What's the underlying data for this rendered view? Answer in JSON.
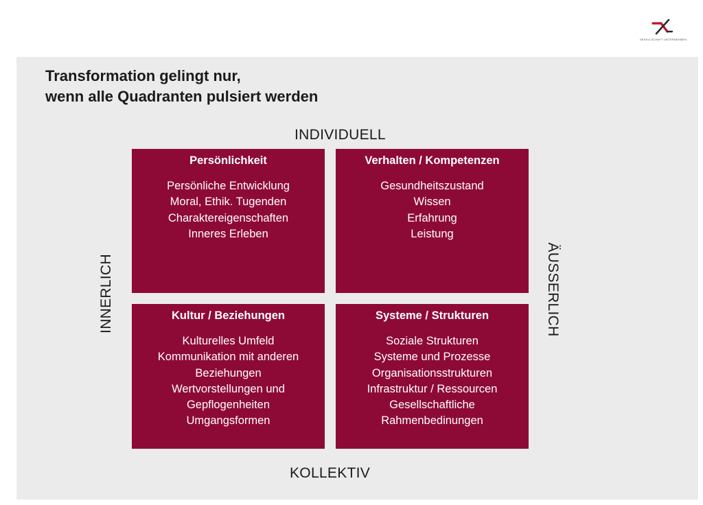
{
  "colors": {
    "quadrant_fill": "#8e0a36",
    "panel_background": "#ebebeb",
    "logo_red": "#c0102c"
  },
  "logo": {
    "icon": "company-logo-mark",
    "text": "GESELLSCHAFT UNTERNEHMEN"
  },
  "title": {
    "line1": "Transformation gelingt nur,",
    "line2": "wenn alle Quadranten pulsiert werden"
  },
  "axes": {
    "top": "INDIVIDUELL",
    "bottom": "KOLLEKTIV",
    "left": "INNERLICH",
    "right": "ÄUSSERLICH"
  },
  "quadrants": [
    {
      "heading": "Persönlichkeit",
      "lines": [
        "Persönliche Entwicklung",
        "Moral, Ethik. Tugenden",
        "Charaktereigenschaften",
        "Inneres Erleben"
      ]
    },
    {
      "heading": "Verhalten / Kompetenzen",
      "lines": [
        "Gesundheitszustand",
        "Wissen",
        "Erfahrung",
        "Leistung"
      ]
    },
    {
      "heading": "Kultur / Beziehungen",
      "lines": [
        "Kulturelles Umfeld",
        "Kommunikation mit anderen",
        "Beziehungen",
        "Wertvorstellungen und",
        "Gepflogenheiten",
        "Umgangsformen"
      ]
    },
    {
      "heading": "Systeme / Strukturen",
      "lines": [
        "Soziale Strukturen",
        "Systeme und Prozesse",
        "Organisationsstrukturen",
        "Infrastruktur / Ressourcen",
        "Gesellschaftliche",
        "Rahmenbedinungen"
      ]
    }
  ]
}
